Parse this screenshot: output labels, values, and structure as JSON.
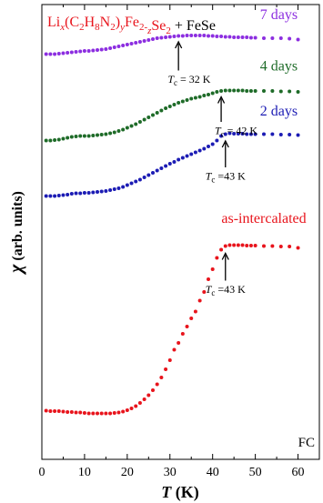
{
  "chart_data": {
    "type": "scatter",
    "title_parts": [
      {
        "t": "Li",
        "s": "n"
      },
      {
        "t": "x",
        "s": "sub-i"
      },
      {
        "t": "(C",
        "s": "n"
      },
      {
        "t": "2",
        "s": "sub"
      },
      {
        "t": "H",
        "s": "n"
      },
      {
        "t": "8",
        "s": "sub"
      },
      {
        "t": "N",
        "s": "n"
      },
      {
        "t": "2",
        "s": "sub"
      },
      {
        "t": ")",
        "s": "n"
      },
      {
        "t": "y",
        "s": "sub-i"
      },
      {
        "t": "Fe",
        "s": "n"
      },
      {
        "t": "2-",
        "s": "sub"
      },
      {
        "t": "z",
        "s": "sub-i"
      },
      {
        "t": "Se",
        "s": "n"
      },
      {
        "t": "2",
        "s": "sub"
      }
    ],
    "title_suffix": " + FeSe",
    "title_color": "#e8141c",
    "xlabel_italic": "T",
    "xlabel_rest": " (K)",
    "ylabel_symbol": "χ",
    "ylabel_rest": " (arb. units)",
    "xlim": [
      0,
      65
    ],
    "ylim": [
      0,
      1
    ],
    "xticks": [
      0,
      10,
      20,
      30,
      40,
      50,
      60
    ],
    "corner_label": "FC",
    "series": [
      {
        "name": "as-intercalated",
        "color": "#e8141c",
        "x": [
          1,
          2,
          3,
          4,
          5,
          6,
          7,
          8,
          9,
          10,
          11,
          12,
          13,
          14,
          15,
          16,
          17,
          18,
          19,
          20,
          21,
          22,
          23,
          24,
          25,
          26,
          27,
          28,
          29,
          30,
          31,
          32,
          33,
          34,
          35,
          36,
          37,
          38,
          39,
          40,
          41,
          42,
          43,
          44,
          45,
          46,
          47,
          48,
          49,
          50,
          52,
          54,
          56,
          58,
          60
        ],
        "y": [
          0.107,
          0.106,
          0.106,
          0.106,
          0.105,
          0.104,
          0.104,
          0.103,
          0.103,
          0.102,
          0.101,
          0.101,
          0.101,
          0.101,
          0.101,
          0.101,
          0.102,
          0.103,
          0.105,
          0.108,
          0.112,
          0.117,
          0.124,
          0.132,
          0.141,
          0.152,
          0.165,
          0.18,
          0.198,
          0.218,
          0.241,
          0.256,
          0.276,
          0.292,
          0.31,
          0.325,
          0.349,
          0.368,
          0.396,
          0.418,
          0.443,
          0.461,
          0.469,
          0.471,
          0.471,
          0.471,
          0.471,
          0.47,
          0.47,
          0.47,
          0.469,
          0.469,
          0.468,
          0.468,
          0.465
        ]
      },
      {
        "name": "2 days",
        "color": "#1c1cb4",
        "x": [
          1,
          2,
          3,
          4,
          5,
          6,
          7,
          8,
          9,
          10,
          11,
          12,
          13,
          14,
          15,
          16,
          17,
          18,
          19,
          20,
          21,
          22,
          23,
          24,
          25,
          26,
          27,
          28,
          29,
          30,
          31,
          32,
          33,
          34,
          35,
          36,
          37,
          38,
          39,
          40,
          41,
          42,
          43,
          44,
          45,
          46,
          47,
          48,
          49,
          50,
          52,
          54,
          56,
          58,
          60
        ],
        "y": [
          0.579,
          0.579,
          0.579,
          0.58,
          0.581,
          0.582,
          0.584,
          0.585,
          0.585,
          0.586,
          0.586,
          0.587,
          0.588,
          0.589,
          0.59,
          0.592,
          0.594,
          0.596,
          0.599,
          0.603,
          0.607,
          0.611,
          0.615,
          0.62,
          0.625,
          0.63,
          0.635,
          0.64,
          0.645,
          0.65,
          0.654,
          0.659,
          0.663,
          0.667,
          0.671,
          0.675,
          0.679,
          0.683,
          0.688,
          0.693,
          0.701,
          0.711,
          0.715,
          0.717,
          0.716,
          0.716,
          0.716,
          0.715,
          0.715,
          0.715,
          0.715,
          0.715,
          0.714,
          0.714,
          0.713
        ]
      },
      {
        "name": "4 days",
        "color": "#1e6b28",
        "x": [
          1,
          2,
          3,
          4,
          5,
          6,
          7,
          8,
          9,
          10,
          11,
          12,
          13,
          14,
          15,
          16,
          17,
          18,
          19,
          20,
          21,
          22,
          23,
          24,
          25,
          26,
          27,
          28,
          29,
          30,
          31,
          32,
          33,
          34,
          35,
          36,
          37,
          38,
          39,
          40,
          41,
          42,
          43,
          44,
          45,
          46,
          47,
          48,
          49,
          50,
          52,
          54,
          56,
          58,
          60
        ],
        "y": [
          0.701,
          0.701,
          0.702,
          0.703,
          0.705,
          0.707,
          0.709,
          0.71,
          0.711,
          0.711,
          0.711,
          0.712,
          0.713,
          0.714,
          0.715,
          0.717,
          0.719,
          0.722,
          0.725,
          0.729,
          0.733,
          0.737,
          0.742,
          0.747,
          0.752,
          0.757,
          0.762,
          0.767,
          0.772,
          0.776,
          0.78,
          0.784,
          0.787,
          0.79,
          0.793,
          0.795,
          0.797,
          0.8,
          0.802,
          0.805,
          0.808,
          0.81,
          0.811,
          0.811,
          0.811,
          0.811,
          0.811,
          0.81,
          0.81,
          0.81,
          0.81,
          0.81,
          0.809,
          0.809,
          0.808
        ]
      },
      {
        "name": "7 days",
        "color": "#8c2ee0",
        "x": [
          1,
          2,
          3,
          4,
          5,
          6,
          7,
          8,
          9,
          10,
          11,
          12,
          13,
          14,
          15,
          16,
          17,
          18,
          19,
          20,
          21,
          22,
          23,
          24,
          25,
          26,
          27,
          28,
          29,
          30,
          31,
          32,
          33,
          34,
          35,
          36,
          37,
          38,
          39,
          40,
          41,
          42,
          43,
          44,
          45,
          46,
          47,
          48,
          49,
          50,
          52,
          54,
          56,
          58,
          60
        ],
        "y": [
          0.891,
          0.891,
          0.891,
          0.892,
          0.893,
          0.894,
          0.895,
          0.896,
          0.897,
          0.898,
          0.898,
          0.899,
          0.9,
          0.901,
          0.902,
          0.904,
          0.906,
          0.908,
          0.91,
          0.912,
          0.914,
          0.916,
          0.918,
          0.92,
          0.922,
          0.924,
          0.926,
          0.927,
          0.928,
          0.929,
          0.93,
          0.931,
          0.931,
          0.932,
          0.932,
          0.932,
          0.932,
          0.932,
          0.931,
          0.931,
          0.93,
          0.93,
          0.929,
          0.929,
          0.928,
          0.928,
          0.928,
          0.928,
          0.927,
          0.927,
          0.926,
          0.926,
          0.926,
          0.925,
          0.923
        ]
      }
    ],
    "series_labels": [
      {
        "text": "as-intercalated",
        "color": "#e8141c",
        "x": 52,
        "y": 0.52
      },
      {
        "text": "2 days",
        "color": "#1c1cb4",
        "x": 55.5,
        "y": 0.756
      },
      {
        "text": "4 days",
        "color": "#1e6b28",
        "x": 55.5,
        "y": 0.855
      },
      {
        "text": "7 days",
        "color": "#8c2ee0",
        "x": 55.5,
        "y": 0.968
      }
    ],
    "annotations": [
      {
        "sub": "c",
        "text": " =43 K",
        "arrow_x": 43,
        "arrow_from_y": 0.393,
        "arrow_to_y": 0.453,
        "label_x": 43,
        "label_y": 0.366
      },
      {
        "sub": "c",
        "text": " =43 K",
        "arrow_x": 43,
        "arrow_from_y": 0.642,
        "arrow_to_y": 0.7,
        "label_x": 43,
        "label_y": 0.615
      },
      {
        "sub": "c",
        "text": " = 42 K",
        "arrow_x": 42,
        "arrow_from_y": 0.742,
        "arrow_to_y": 0.797,
        "label_x": 45.5,
        "label_y": 0.715
      },
      {
        "sub": "c",
        "text": " = 32 K",
        "arrow_x": 32,
        "arrow_from_y": 0.855,
        "arrow_to_y": 0.918,
        "label_x": 34.5,
        "label_y": 0.828
      }
    ]
  }
}
